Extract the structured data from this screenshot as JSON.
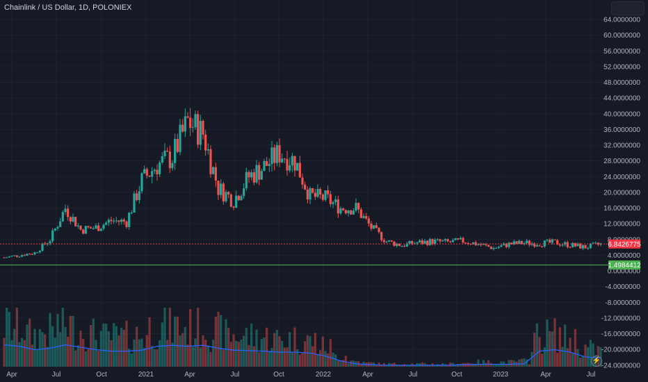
{
  "header": {
    "title": "Chainlink / US Dollar, 1D, POLONIEX"
  },
  "price_axis": {
    "ticks": [
      "64.0000000",
      "60.0000000",
      "56.0000000",
      "52.0000000",
      "48.0000000",
      "44.0000000",
      "40.0000000",
      "36.0000000",
      "32.0000000",
      "28.0000000",
      "24.0000000",
      "20.0000000",
      "16.0000000",
      "12.0000000",
      "8.0000000",
      "4.0000000",
      "0.0000000",
      "-4.0000000",
      "-8.0000000",
      "-12.0000000",
      "-16.0000000",
      "-20.0000000",
      "-24.0000000"
    ],
    "tick_values": [
      64,
      60,
      56,
      52,
      48,
      44,
      40,
      36,
      32,
      28,
      24,
      20,
      16,
      12,
      8,
      4,
      0,
      -4,
      -8,
      -12,
      -16,
      -20,
      -24
    ]
  },
  "time_axis": {
    "labels": [
      "Apr",
      "Jul",
      "Oct",
      "2021",
      "Apr",
      "Jul",
      "Oct",
      "2022",
      "Apr",
      "Jul",
      "Oct",
      "2023",
      "Apr",
      "Jul"
    ]
  },
  "price_line": {
    "value": 6.8426775,
    "label": "6.8426775",
    "color": "#f23645"
  },
  "support_line": {
    "value": 1.4984412,
    "label": "1.4984412",
    "color": "#4caf50"
  },
  "colors": {
    "up": "#26a69a",
    "down": "#ef5350",
    "volume_ma": "#2962ff",
    "background": "#161a25"
  },
  "chart_data": {
    "type": "candlestick",
    "symbol": "Chainlink / US Dollar",
    "interval": "1D",
    "exchange": "POLONIEX",
    "x": [
      "2020-04",
      "2020-05",
      "2020-06",
      "2020-07",
      "2020-08",
      "2020-09",
      "2020-10",
      "2020-11",
      "2020-12",
      "2021-01",
      "2021-02",
      "2021-03",
      "2021-04",
      "2021-05",
      "2021-06",
      "2021-07",
      "2021-08",
      "2021-09",
      "2021-10",
      "2021-11",
      "2021-12",
      "2022-01",
      "2022-02",
      "2022-03",
      "2022-04",
      "2022-05",
      "2022-06",
      "2022-07",
      "2022-08",
      "2022-09",
      "2022-10",
      "2022-11",
      "2022-12",
      "2023-01",
      "2023-02",
      "2023-03",
      "2023-04",
      "2023-05",
      "2023-06",
      "2023-07"
    ],
    "close": [
      3.4,
      4.0,
      4.6,
      8.0,
      16.0,
      10.5,
      11.0,
      12.8,
      12.5,
      23.0,
      27.0,
      29.0,
      38.0,
      35.0,
      21.0,
      18.0,
      24.0,
      26.5,
      30.0,
      28.0,
      19.0,
      18.5,
      16.0,
      16.0,
      11.0,
      7.5,
      6.5,
      7.2,
      7.5,
      7.3,
      7.6,
      6.8,
      5.8,
      6.8,
      7.1,
      7.0,
      7.2,
      6.6,
      6.0,
      6.8
    ],
    "ylim": [
      -24,
      66
    ],
    "volume_ma": [
      0.45,
      0.42,
      0.35,
      0.38,
      0.45,
      0.4,
      0.35,
      0.32,
      0.32,
      0.34,
      0.42,
      0.44,
      0.42,
      0.44,
      0.38,
      0.34,
      0.33,
      0.32,
      0.3,
      0.3,
      0.28,
      0.22,
      0.12,
      0.06,
      0.04,
      0.03,
      0.03,
      0.03,
      0.03,
      0.03,
      0.04,
      0.05,
      0.05,
      0.05,
      0.06,
      0.32,
      0.35,
      0.3,
      0.2,
      0.18
    ]
  }
}
